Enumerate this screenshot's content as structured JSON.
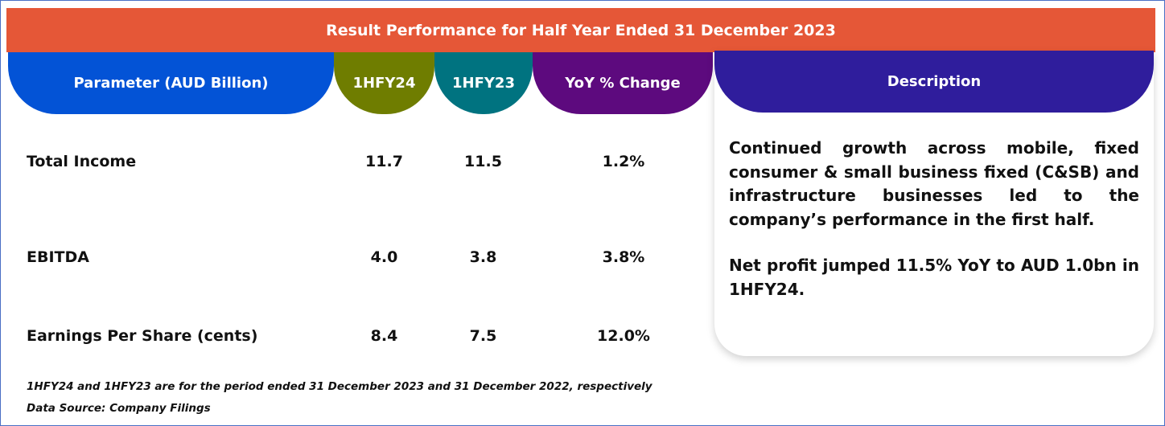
{
  "title": "Result Performance for Half Year Ended 31 December 2023",
  "headers": {
    "parameter": "Parameter (AUD Billion)",
    "col1": "1HFY24",
    "col2": "1HFY23",
    "col3": "YoY % Change",
    "description": "Description"
  },
  "rows": [
    {
      "label": "Total Income",
      "v1": "11.7",
      "v2": "11.5",
      "yoy": "1.2%"
    },
    {
      "label": "EBITDA",
      "v1": "4.0",
      "v2": "3.8",
      "yoy": "3.8%"
    },
    {
      "label": "Earnings Per Share (cents)",
      "v1": "8.4",
      "v2": "7.5",
      "yoy": "12.0%"
    }
  ],
  "description": {
    "para1": "Continued growth across mobile, fixed consumer & small business fixed (C&SB) and infrastructure businesses led to the company’s performance in the first half.",
    "para2": "Net profit jumped 11.5% YoY to AUD 1.0bn in 1HFY24."
  },
  "notes": {
    "period": "1HFY24 and 1HFY23 are for the period ended 31 December 2023 and 31 December 2022, respectively",
    "source": "Data Source: Company Filings"
  },
  "colors": {
    "banner": "#e55737",
    "parameter": "#0353d6",
    "col1": "#6f7d00",
    "col2": "#007380",
    "col3": "#5d0a7e",
    "description": "#2f1d9c"
  }
}
